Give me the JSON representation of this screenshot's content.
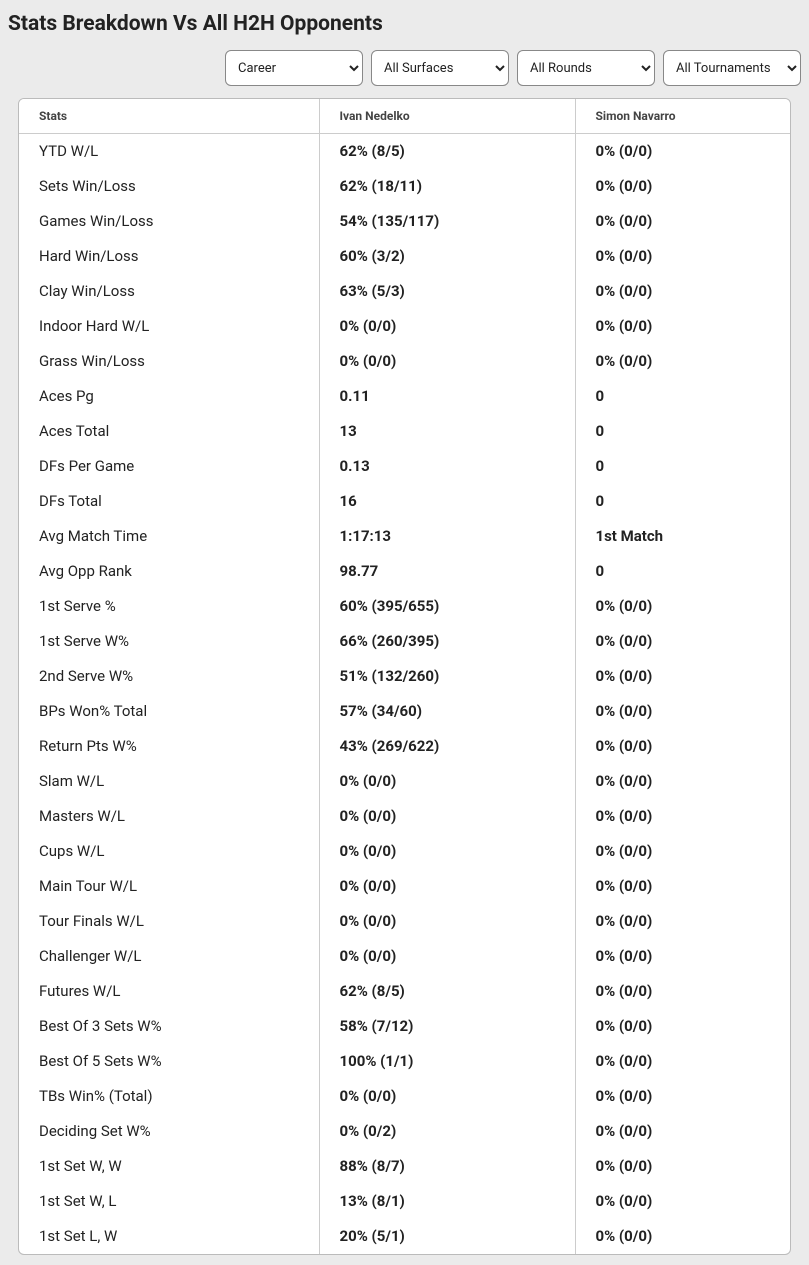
{
  "title": "Stats Breakdown Vs All H2H Opponents",
  "filters": {
    "career": "Career",
    "surface": "All Surfaces",
    "round": "All Rounds",
    "tournament": "All Tournaments"
  },
  "columns": {
    "stats": "Stats",
    "player1": "Ivan Nedelko",
    "player2": "Simon Navarro"
  },
  "rows": [
    {
      "label": "YTD W/L",
      "p1": "62% (8/5)",
      "p2": "0% (0/0)"
    },
    {
      "label": "Sets Win/Loss",
      "p1": "62% (18/11)",
      "p2": "0% (0/0)"
    },
    {
      "label": "Games Win/Loss",
      "p1": "54% (135/117)",
      "p2": "0% (0/0)"
    },
    {
      "label": "Hard Win/Loss",
      "p1": "60% (3/2)",
      "p2": "0% (0/0)"
    },
    {
      "label": "Clay Win/Loss",
      "p1": "63% (5/3)",
      "p2": "0% (0/0)"
    },
    {
      "label": "Indoor Hard W/L",
      "p1": "0% (0/0)",
      "p2": "0% (0/0)"
    },
    {
      "label": "Grass Win/Loss",
      "p1": "0% (0/0)",
      "p2": "0% (0/0)"
    },
    {
      "label": "Aces Pg",
      "p1": "0.11",
      "p2": "0"
    },
    {
      "label": "Aces Total",
      "p1": "13",
      "p2": "0"
    },
    {
      "label": "DFs Per Game",
      "p1": "0.13",
      "p2": "0"
    },
    {
      "label": "DFs Total",
      "p1": "16",
      "p2": "0"
    },
    {
      "label": "Avg Match Time",
      "p1": "1:17:13",
      "p2": "1st Match"
    },
    {
      "label": "Avg Opp Rank",
      "p1": "98.77",
      "p2": "0"
    },
    {
      "label": "1st Serve %",
      "p1": "60% (395/655)",
      "p2": "0% (0/0)"
    },
    {
      "label": "1st Serve W%",
      "p1": "66% (260/395)",
      "p2": "0% (0/0)"
    },
    {
      "label": "2nd Serve W%",
      "p1": "51% (132/260)",
      "p2": "0% (0/0)"
    },
    {
      "label": "BPs Won% Total",
      "p1": "57% (34/60)",
      "p2": "0% (0/0)"
    },
    {
      "label": "Return Pts W%",
      "p1": "43% (269/622)",
      "p2": "0% (0/0)"
    },
    {
      "label": "Slam W/L",
      "p1": "0% (0/0)",
      "p2": "0% (0/0)"
    },
    {
      "label": "Masters W/L",
      "p1": "0% (0/0)",
      "p2": "0% (0/0)"
    },
    {
      "label": "Cups W/L",
      "p1": "0% (0/0)",
      "p2": "0% (0/0)"
    },
    {
      "label": "Main Tour W/L",
      "p1": "0% (0/0)",
      "p2": "0% (0/0)"
    },
    {
      "label": "Tour Finals W/L",
      "p1": "0% (0/0)",
      "p2": "0% (0/0)"
    },
    {
      "label": "Challenger W/L",
      "p1": "0% (0/0)",
      "p2": "0% (0/0)"
    },
    {
      "label": "Futures W/L",
      "p1": "62% (8/5)",
      "p2": "0% (0/0)"
    },
    {
      "label": "Best Of 3 Sets W%",
      "p1": "58% (7/12)",
      "p2": "0% (0/0)"
    },
    {
      "label": "Best Of 5 Sets W%",
      "p1": "100% (1/1)",
      "p2": "0% (0/0)"
    },
    {
      "label": "TBs Win% (Total)",
      "p1": "0% (0/0)",
      "p2": "0% (0/0)"
    },
    {
      "label": "Deciding Set W%",
      "p1": "0% (0/2)",
      "p2": "0% (0/0)"
    },
    {
      "label": "1st Set W, W",
      "p1": "88% (8/7)",
      "p2": "0% (0/0)"
    },
    {
      "label": "1st Set W, L",
      "p1": "13% (8/1)",
      "p2": "0% (0/0)"
    },
    {
      "label": "1st Set L, W",
      "p1": "20% (5/1)",
      "p2": "0% (0/0)"
    }
  ]
}
